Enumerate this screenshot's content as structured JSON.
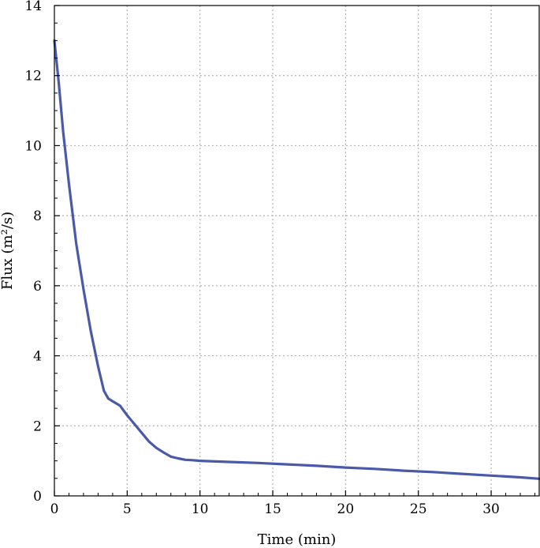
{
  "chart_data": {
    "type": "line",
    "title": "",
    "xlabel": "Time (min)",
    "ylabel": "Flux (m²/s)",
    "xlim": [
      0,
      33.3
    ],
    "ylim": [
      0,
      14
    ],
    "x_ticks": [
      0,
      5,
      10,
      15,
      20,
      25,
      30
    ],
    "y_ticks": [
      0,
      2,
      4,
      6,
      8,
      10,
      12,
      14
    ],
    "x_minor_step": 1,
    "y_minor_step": 0.5,
    "grid": true,
    "grid_style": "dotted",
    "legend": "none",
    "series": [
      {
        "color": "#4a5aa8",
        "x": [
          0,
          0.3,
          0.6,
          1.0,
          1.5,
          2.0,
          2.5,
          3.0,
          3.4,
          3.7,
          4.0,
          4.5,
          5.0,
          5.5,
          6.0,
          6.5,
          7.0,
          7.5,
          8.0,
          8.5,
          9.0,
          9.5,
          10,
          12,
          14,
          16,
          18,
          20,
          22,
          24,
          26,
          28,
          30,
          32,
          33.3
        ],
        "y": [
          13.0,
          11.8,
          10.4,
          8.9,
          7.2,
          5.9,
          4.7,
          3.7,
          3.0,
          2.78,
          2.7,
          2.58,
          2.3,
          2.05,
          1.8,
          1.55,
          1.37,
          1.24,
          1.12,
          1.07,
          1.03,
          1.02,
          1.0,
          0.97,
          0.94,
          0.9,
          0.86,
          0.81,
          0.77,
          0.72,
          0.68,
          0.63,
          0.58,
          0.53,
          0.49
        ]
      }
    ]
  }
}
